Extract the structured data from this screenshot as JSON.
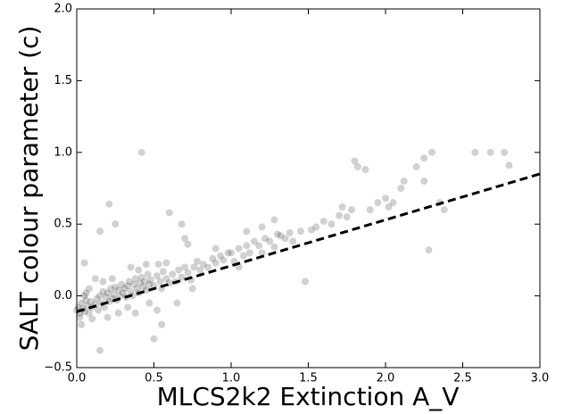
{
  "chart_data": {
    "type": "scatter",
    "xlabel": "MLCS2k2 Extinction A_V",
    "ylabel": "SALT colour parameter (c)",
    "x": [
      0.0,
      0.01,
      0.02,
      0.03,
      0.02,
      0.04,
      0.05,
      0.06,
      0.03,
      0.05,
      0.07,
      0.08,
      0.09,
      0.1,
      0.05,
      0.06,
      0.08,
      0.1,
      0.12,
      0.13,
      0.14,
      0.15,
      0.16,
      0.17,
      0.18,
      0.19,
      0.2,
      0.21,
      0.22,
      0.23,
      0.24,
      0.25,
      0.26,
      0.27,
      0.28,
      0.29,
      0.3,
      0.15,
      0.15,
      0.21,
      0.25,
      0.2,
      0.12,
      0.27,
      0.17,
      0.23,
      0.31,
      0.32,
      0.33,
      0.34,
      0.35,
      0.36,
      0.37,
      0.38,
      0.39,
      0.4,
      0.41,
      0.42,
      0.43,
      0.44,
      0.45,
      0.46,
      0.47,
      0.48,
      0.5,
      0.52,
      0.54,
      0.55,
      0.56,
      0.58,
      0.6,
      0.42,
      0.38,
      0.5,
      0.52,
      0.55,
      0.35,
      0.4,
      0.45,
      0.53,
      0.58,
      0.6,
      0.33,
      0.47,
      0.62,
      0.64,
      0.66,
      0.68,
      0.7,
      0.72,
      0.74,
      0.76,
      0.78,
      0.8,
      0.82,
      0.85,
      0.88,
      0.9,
      0.93,
      0.95,
      0.98,
      0.68,
      0.7,
      0.72,
      0.9,
      0.65,
      0.75,
      1.0,
      1.02,
      1.05,
      1.08,
      1.1,
      1.12,
      1.15,
      1.18,
      1.2,
      1.22,
      1.25,
      1.28,
      1.3,
      1.32,
      1.35,
      1.38,
      1.4,
      1.05,
      1.1,
      1.2,
      1.28,
      1.48,
      1.45,
      1.52,
      1.55,
      1.6,
      1.65,
      1.7,
      1.72,
      1.75,
      1.78,
      1.8,
      1.82,
      1.87,
      1.9,
      1.95,
      2.0,
      2.02,
      2.05,
      2.1,
      2.12,
      2.2,
      2.25,
      2.25,
      2.28,
      2.3,
      2.35,
      2.38,
      2.58,
      2.68,
      2.77,
      2.8
    ],
    "y": [
      -0.1,
      -0.08,
      -0.12,
      -0.05,
      -0.15,
      -0.09,
      -0.11,
      -0.03,
      -0.2,
      0.0,
      -0.07,
      -0.12,
      -0.04,
      -0.08,
      0.23,
      0.02,
      0.05,
      -0.16,
      -0.06,
      -0.02,
      -0.1,
      0.0,
      -0.05,
      0.03,
      -0.08,
      -0.01,
      0.02,
      -0.04,
      0.05,
      -0.02,
      0.01,
      0.06,
      -0.03,
      0.04,
      0.0,
      0.08,
      0.02,
      0.45,
      -0.38,
      0.64,
      0.5,
      -0.15,
      0.12,
      -0.12,
      0.1,
      0.12,
      0.05,
      -0.01,
      0.07,
      0.1,
      0.03,
      0.0,
      0.08,
      0.12,
      0.05,
      0.02,
      0.09,
      0.13,
      0.06,
      0.1,
      0.04,
      0.15,
      0.08,
      0.11,
      0.07,
      0.14,
      0.1,
      0.05,
      0.17,
      0.12,
      0.09,
      1.0,
      -0.12,
      -0.3,
      -0.1,
      -0.2,
      0.2,
      0.18,
      0.22,
      0.22,
      0.23,
      0.58,
      -0.08,
      -0.05,
      0.15,
      0.1,
      0.18,
      0.13,
      0.2,
      0.16,
      0.11,
      0.2,
      0.24,
      0.18,
      0.22,
      0.2,
      0.26,
      0.23,
      0.28,
      0.25,
      0.3,
      0.5,
      0.4,
      0.36,
      0.33,
      -0.05,
      0.05,
      0.3,
      0.24,
      0.33,
      0.28,
      0.35,
      0.3,
      0.38,
      0.35,
      0.3,
      0.4,
      0.38,
      0.34,
      0.43,
      0.42,
      0.4,
      0.44,
      0.38,
      0.2,
      0.45,
      0.48,
      0.53,
      0.1,
      0.45,
      0.46,
      0.48,
      0.52,
      0.5,
      0.56,
      0.62,
      0.55,
      0.6,
      0.94,
      0.9,
      0.88,
      0.6,
      0.65,
      0.68,
      0.62,
      0.65,
      0.75,
      0.8,
      0.9,
      0.8,
      0.96,
      0.32,
      1.0,
      0.65,
      0.6,
      1.0,
      1.0,
      1.0,
      0.91
    ],
    "color": "#000000",
    "alpha": 0.18,
    "fit": {
      "x": [
        0,
        3
      ],
      "y": [
        -0.11,
        0.85
      ],
      "color": "#000000",
      "linestyle": "dashed"
    },
    "xlim": [
      0,
      3
    ],
    "ylim": [
      -0.5,
      2.0
    ],
    "xticks": [
      {
        "value": 0,
        "label": "0.0"
      },
      0.5,
      {
        "value": 1,
        "label": "1.0"
      },
      1.5,
      {
        "value": 2,
        "label": "2.0"
      },
      2.5,
      {
        "value": 3,
        "label": "3.0"
      }
    ],
    "yticks": [
      {
        "value": -0.5,
        "label": "−0.5"
      },
      {
        "value": 0,
        "label": "0.0"
      },
      0.5,
      {
        "value": 1,
        "label": "1.0"
      },
      1.5,
      {
        "value": 2,
        "label": "2.0"
      }
    ],
    "grid": false
  }
}
